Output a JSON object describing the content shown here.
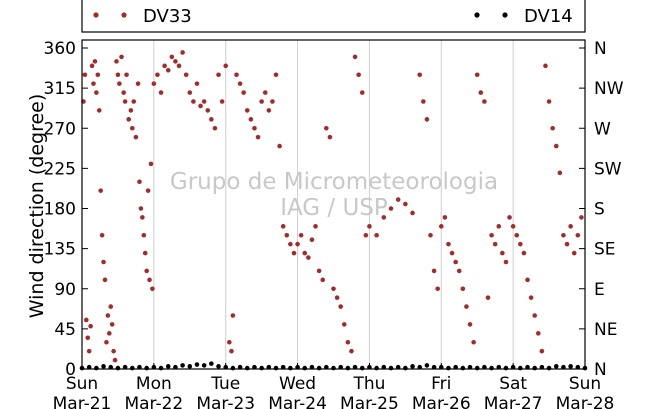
{
  "chart_data": {
    "type": "scatter",
    "title": "",
    "ylabel": "Wind direction (degree)",
    "ylim": [
      0,
      370
    ],
    "yticks": [
      0,
      45,
      90,
      135,
      180,
      225,
      270,
      315,
      360
    ],
    "y2ticks": [
      {
        "value": 0,
        "label": "N"
      },
      {
        "value": 45,
        "label": "NE"
      },
      {
        "value": 90,
        "label": "E"
      },
      {
        "value": 135,
        "label": "SE"
      },
      {
        "value": 180,
        "label": "S"
      },
      {
        "value": 225,
        "label": "SW"
      },
      {
        "value": 270,
        "label": "W"
      },
      {
        "value": 315,
        "label": "NW"
      },
      {
        "value": 360,
        "label": "N"
      }
    ],
    "xlim": [
      0,
      7
    ],
    "xticks": [
      {
        "day": 0,
        "weekday": "Sun",
        "date": "Mar-21"
      },
      {
        "day": 1,
        "weekday": "Mon",
        "date": "Mar-22"
      },
      {
        "day": 2,
        "weekday": "Tue",
        "date": "Mar-23"
      },
      {
        "day": 3,
        "weekday": "Wed",
        "date": "Mar-24"
      },
      {
        "day": 4,
        "weekday": "Thu",
        "date": "Mar-25"
      },
      {
        "day": 5,
        "weekday": "Fri",
        "date": "Mar-26"
      },
      {
        "day": 6,
        "weekday": "Sat",
        "date": "Mar-27"
      },
      {
        "day": 7,
        "weekday": "Sun",
        "date": "Mar-28"
      }
    ],
    "grid": "vertical",
    "legend_position": "top",
    "watermark": [
      "Grupo de Micrometeorologia",
      "IAG / USP"
    ],
    "series": [
      {
        "name": "DV33",
        "color": "#a52a2a",
        "points": [
          [
            0.02,
            300
          ],
          [
            0.04,
            330
          ],
          [
            0.06,
            55
          ],
          [
            0.08,
            35
          ],
          [
            0.1,
            20
          ],
          [
            0.12,
            48
          ],
          [
            0.14,
            340
          ],
          [
            0.16,
            320
          ],
          [
            0.18,
            345
          ],
          [
            0.2,
            310
          ],
          [
            0.22,
            330
          ],
          [
            0.24,
            290
          ],
          [
            0.26,
            200
          ],
          [
            0.28,
            150
          ],
          [
            0.3,
            120
          ],
          [
            0.32,
            100
          ],
          [
            0.34,
            30
          ],
          [
            0.36,
            60
          ],
          [
            0.38,
            40
          ],
          [
            0.4,
            70
          ],
          [
            0.42,
            50
          ],
          [
            0.44,
            20
          ],
          [
            0.46,
            10
          ],
          [
            0.48,
            345
          ],
          [
            0.5,
            330
          ],
          [
            0.52,
            320
          ],
          [
            0.55,
            350
          ],
          [
            0.58,
            310
          ],
          [
            0.6,
            300
          ],
          [
            0.62,
            330
          ],
          [
            0.65,
            280
          ],
          [
            0.68,
            290
          ],
          [
            0.7,
            270
          ],
          [
            0.72,
            300
          ],
          [
            0.75,
            260
          ],
          [
            0.78,
            320
          ],
          [
            0.8,
            210
          ],
          [
            0.82,
            180
          ],
          [
            0.84,
            170
          ],
          [
            0.86,
            150
          ],
          [
            0.88,
            130
          ],
          [
            0.9,
            110
          ],
          [
            0.92,
            200
          ],
          [
            0.94,
            100
          ],
          [
            0.96,
            230
          ],
          [
            0.98,
            90
          ],
          [
            1.0,
            320
          ],
          [
            1.05,
            330
          ],
          [
            1.1,
            310
          ],
          [
            1.15,
            340
          ],
          [
            1.2,
            335
          ],
          [
            1.25,
            350
          ],
          [
            1.3,
            345
          ],
          [
            1.35,
            340
          ],
          [
            1.4,
            355
          ],
          [
            1.45,
            330
          ],
          [
            1.5,
            310
          ],
          [
            1.55,
            300
          ],
          [
            1.6,
            320
          ],
          [
            1.65,
            295
          ],
          [
            1.7,
            300
          ],
          [
            1.75,
            290
          ],
          [
            1.8,
            280
          ],
          [
            1.85,
            270
          ],
          [
            1.9,
            330
          ],
          [
            1.95,
            300
          ],
          [
            2.0,
            340
          ],
          [
            2.05,
            30
          ],
          [
            2.08,
            20
          ],
          [
            2.1,
            60
          ],
          [
            2.15,
            330
          ],
          [
            2.2,
            320
          ],
          [
            2.25,
            310
          ],
          [
            2.3,
            290
          ],
          [
            2.35,
            280
          ],
          [
            2.4,
            270
          ],
          [
            2.45,
            260
          ],
          [
            2.5,
            300
          ],
          [
            2.55,
            310
          ],
          [
            2.6,
            290
          ],
          [
            2.65,
            300
          ],
          [
            2.7,
            330
          ],
          [
            2.75,
            250
          ],
          [
            2.8,
            160
          ],
          [
            2.85,
            150
          ],
          [
            2.9,
            140
          ],
          [
            2.95,
            130
          ],
          [
            3.0,
            140
          ],
          [
            3.05,
            150
          ],
          [
            3.1,
            130
          ],
          [
            3.15,
            125
          ],
          [
            3.2,
            145
          ],
          [
            3.25,
            160
          ],
          [
            3.3,
            110
          ],
          [
            3.35,
            100
          ],
          [
            3.4,
            270
          ],
          [
            3.45,
            260
          ],
          [
            3.5,
            90
          ],
          [
            3.55,
            80
          ],
          [
            3.6,
            70
          ],
          [
            3.65,
            50
          ],
          [
            3.7,
            30
          ],
          [
            3.75,
            20
          ],
          [
            3.8,
            350
          ],
          [
            3.85,
            330
          ],
          [
            3.9,
            310
          ],
          [
            3.95,
            150
          ],
          [
            4.0,
            160
          ],
          [
            4.1,
            150
          ],
          [
            4.2,
            170
          ],
          [
            4.3,
            180
          ],
          [
            4.4,
            190
          ],
          [
            4.5,
            185
          ],
          [
            4.6,
            175
          ],
          [
            4.7,
            330
          ],
          [
            4.75,
            300
          ],
          [
            4.8,
            280
          ],
          [
            4.85,
            150
          ],
          [
            4.9,
            110
          ],
          [
            4.95,
            90
          ],
          [
            5.0,
            160
          ],
          [
            5.05,
            170
          ],
          [
            5.1,
            140
          ],
          [
            5.15,
            130
          ],
          [
            5.2,
            120
          ],
          [
            5.25,
            110
          ],
          [
            5.3,
            90
          ],
          [
            5.35,
            70
          ],
          [
            5.4,
            50
          ],
          [
            5.45,
            30
          ],
          [
            5.5,
            330
          ],
          [
            5.55,
            310
          ],
          [
            5.6,
            300
          ],
          [
            5.65,
            80
          ],
          [
            5.7,
            150
          ],
          [
            5.75,
            140
          ],
          [
            5.8,
            160
          ],
          [
            5.85,
            130
          ],
          [
            5.9,
            120
          ],
          [
            5.95,
            170
          ],
          [
            6.0,
            160
          ],
          [
            6.05,
            150
          ],
          [
            6.1,
            140
          ],
          [
            6.15,
            130
          ],
          [
            6.2,
            100
          ],
          [
            6.25,
            80
          ],
          [
            6.3,
            60
          ],
          [
            6.35,
            40
          ],
          [
            6.4,
            20
          ],
          [
            6.45,
            340
          ],
          [
            6.5,
            300
          ],
          [
            6.55,
            270
          ],
          [
            6.6,
            250
          ],
          [
            6.65,
            220
          ],
          [
            6.7,
            150
          ],
          [
            6.75,
            140
          ],
          [
            6.8,
            160
          ],
          [
            6.85,
            130
          ],
          [
            6.9,
            150
          ],
          [
            6.95,
            170
          ]
        ]
      },
      {
        "name": "DV14",
        "color": "#000000",
        "points": [
          [
            0.0,
            1
          ],
          [
            0.1,
            2
          ],
          [
            0.2,
            1
          ],
          [
            0.3,
            3
          ],
          [
            0.4,
            2
          ],
          [
            0.5,
            1
          ],
          [
            0.6,
            2
          ],
          [
            0.7,
            1
          ],
          [
            0.8,
            2
          ],
          [
            0.9,
            1
          ],
          [
            1.0,
            2
          ],
          [
            1.1,
            1
          ],
          [
            1.2,
            3
          ],
          [
            1.3,
            2
          ],
          [
            1.4,
            4
          ],
          [
            1.5,
            3
          ],
          [
            1.6,
            5
          ],
          [
            1.7,
            4
          ],
          [
            1.8,
            6
          ],
          [
            1.9,
            3
          ],
          [
            2.0,
            2
          ],
          [
            2.1,
            1
          ],
          [
            2.2,
            2
          ],
          [
            2.3,
            1
          ],
          [
            2.4,
            2
          ],
          [
            2.5,
            1
          ],
          [
            2.6,
            2
          ],
          [
            2.7,
            1
          ],
          [
            2.8,
            2
          ],
          [
            2.9,
            1
          ],
          [
            3.0,
            2
          ],
          [
            3.1,
            1
          ],
          [
            3.2,
            2
          ],
          [
            3.3,
            1
          ],
          [
            3.4,
            2
          ],
          [
            3.5,
            1
          ],
          [
            3.6,
            2
          ],
          [
            3.7,
            1
          ],
          [
            3.8,
            2
          ],
          [
            3.9,
            1
          ],
          [
            4.0,
            2
          ],
          [
            4.1,
            1
          ],
          [
            4.2,
            2
          ],
          [
            4.3,
            1
          ],
          [
            4.4,
            2
          ],
          [
            4.5,
            1
          ],
          [
            4.6,
            3
          ],
          [
            4.7,
            2
          ],
          [
            4.8,
            4
          ],
          [
            4.9,
            2
          ],
          [
            5.0,
            2
          ],
          [
            5.1,
            1
          ],
          [
            5.2,
            2
          ],
          [
            5.3,
            1
          ],
          [
            5.4,
            2
          ],
          [
            5.5,
            1
          ],
          [
            5.6,
            2
          ],
          [
            5.7,
            1
          ],
          [
            5.8,
            2
          ],
          [
            5.9,
            1
          ],
          [
            6.0,
            2
          ],
          [
            6.1,
            1
          ],
          [
            6.2,
            2
          ],
          [
            6.3,
            1
          ],
          [
            6.4,
            2
          ],
          [
            6.5,
            1
          ],
          [
            6.6,
            3
          ],
          [
            6.7,
            2
          ],
          [
            6.8,
            3
          ],
          [
            6.9,
            2
          ],
          [
            7.0,
            1
          ]
        ]
      }
    ]
  }
}
